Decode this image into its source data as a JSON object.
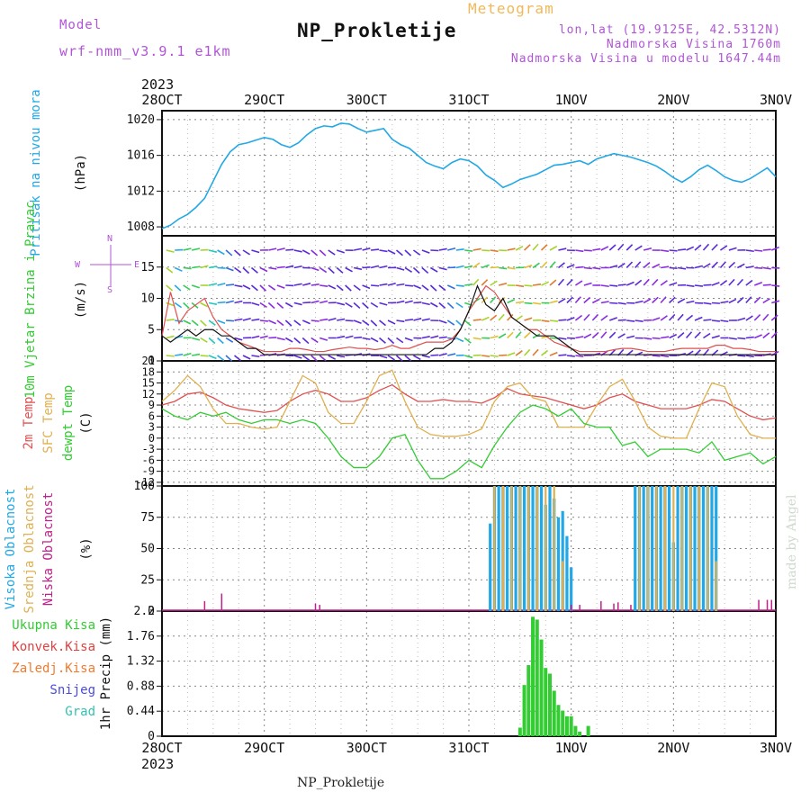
{
  "header": {
    "model_label": "Model",
    "model_name": "wrf-nmm_v3.9.1 e1km",
    "station": "NP_Prokletije",
    "product": "Meteogram",
    "lonlat": "lon,lat (19.9125E, 42.5312N)",
    "elevation": "Nadmorska Visina 1760m",
    "model_elevation": "Nadmorska Visina u modelu 1647.44m"
  },
  "footer": {
    "station": "NP_Prokletije",
    "credit": "made by Angel"
  },
  "colors": {
    "pressure": "#22a8e6",
    "wind_speed": "#e05050",
    "wind_gust": "#111111",
    "temp2m": "#e05050",
    "sfc_temp": "#e0b050",
    "dewpoint": "#33cc33",
    "cloud_high": "#22a8e6",
    "cloud_mid": "#e0b050",
    "cloud_low": "#c0208a",
    "precip_total": "#33cc33"
  },
  "chart_data": [
    {
      "type": "line",
      "panel": "pressure",
      "title": "NP_Prokletije",
      "year_label": "2023",
      "x_ticks": [
        "28OCT",
        "29OCT",
        "30OCT",
        "31OCT",
        "1NOV",
        "2NOV",
        "3NOV"
      ],
      "xlim": [
        0,
        144
      ],
      "ylabel": "Pritisak na nivou mora",
      "unit": "(hPa)",
      "ylim": [
        1007,
        1021
      ],
      "y_ticks": [
        "1008",
        "1012",
        "1016",
        "1020"
      ],
      "series": [
        {
          "x": [
            0,
            2,
            4,
            6,
            8,
            10,
            12,
            14,
            16,
            18,
            20,
            22,
            24,
            26,
            28,
            30,
            32,
            34,
            36,
            38,
            40,
            42,
            44,
            46,
            48,
            50,
            52,
            54,
            56,
            58,
            60,
            62,
            64,
            66,
            68,
            70,
            72,
            74,
            76,
            78,
            80,
            82,
            84,
            86,
            88,
            90,
            92,
            94,
            96,
            98,
            100,
            102,
            104,
            106,
            108,
            110,
            112,
            114,
            116,
            118,
            120,
            122,
            124,
            126,
            128,
            130,
            132,
            134,
            136,
            138,
            140,
            142,
            144
          ],
          "values": [
            1007.8,
            1008.2,
            1008.9,
            1009.4,
            1010.2,
            1011.2,
            1013.1,
            1015.0,
            1016.4,
            1017.2,
            1017.4,
            1017.7,
            1018.0,
            1017.8,
            1017.2,
            1016.9,
            1017.4,
            1018.3,
            1019.0,
            1019.3,
            1019.2,
            1019.6,
            1019.5,
            1019.0,
            1018.6,
            1018.8,
            1019.0,
            1017.8,
            1017.2,
            1016.8,
            1016.0,
            1015.2,
            1014.8,
            1014.5,
            1015.2,
            1015.6,
            1015.4,
            1014.8,
            1013.8,
            1013.2,
            1012.4,
            1012.8,
            1013.3,
            1013.6,
            1013.9,
            1014.4,
            1014.9,
            1015.0,
            1015.2,
            1015.4,
            1015.0,
            1015.6,
            1015.9,
            1016.2,
            1016.0,
            1015.8,
            1015.5,
            1015.2,
            1014.8,
            1014.2,
            1013.5,
            1013.0,
            1013.6,
            1014.4,
            1014.9,
            1014.3,
            1013.6,
            1013.2,
            1013.0,
            1013.4,
            1014.0,
            1014.6,
            1013.6
          ]
        }
      ]
    },
    {
      "type": "line",
      "panel": "wind",
      "ylabel": "10m Vjetar Brzina i Pravac",
      "unit": "(m/s)",
      "compass": [
        "N",
        "W",
        "E",
        "S"
      ],
      "ylim": [
        0,
        20
      ],
      "y_ticks": [
        "0",
        "5",
        "10",
        "15"
      ],
      "xlim": [
        0,
        144
      ],
      "series": [
        {
          "name": "speed",
          "x": [
            0,
            2,
            4,
            6,
            8,
            10,
            12,
            14,
            16,
            18,
            20,
            22,
            24,
            26,
            28,
            30,
            32,
            34,
            36,
            38,
            40,
            42,
            44,
            46,
            48,
            50,
            52,
            54,
            56,
            58,
            60,
            62,
            64,
            66,
            68,
            70,
            72,
            74,
            76,
            78,
            80,
            82,
            84,
            86,
            88,
            90,
            92,
            94,
            96,
            98,
            100,
            102,
            104,
            106,
            108,
            110,
            112,
            114,
            116,
            118,
            120,
            122,
            124,
            126,
            128,
            130,
            132,
            134,
            136,
            138,
            140,
            142,
            144
          ],
          "values": [
            4,
            11,
            6,
            8,
            9,
            10,
            7,
            5,
            4,
            3,
            2.5,
            2,
            1.5,
            1.5,
            1.5,
            2,
            2,
            1.8,
            1.5,
            1.5,
            1.8,
            2,
            2.2,
            2,
            2,
            1.8,
            2,
            2.5,
            2,
            2,
            2.5,
            3,
            3,
            3,
            3.5,
            5,
            8,
            10,
            12,
            11,
            9,
            7,
            6,
            5,
            5,
            4,
            3,
            2.5,
            2,
            1.5,
            1.5,
            1.5,
            1.5,
            1.8,
            2,
            2,
            1.8,
            1.5,
            1.5,
            1.5,
            1.8,
            2,
            2,
            2,
            2,
            2.5,
            2.5,
            2,
            2,
            1.8,
            1.5,
            1.5,
            1.5
          ]
        },
        {
          "name": "gust",
          "x": [
            0,
            2,
            4,
            6,
            8,
            10,
            12,
            14,
            16,
            18,
            20,
            22,
            24,
            26,
            28,
            30,
            32,
            34,
            36,
            38,
            40,
            42,
            44,
            46,
            48,
            50,
            52,
            54,
            56,
            58,
            60,
            62,
            64,
            66,
            68,
            70,
            72,
            74,
            76,
            78,
            80,
            82,
            84,
            86,
            88,
            90,
            92,
            94,
            96,
            98,
            100,
            102,
            104,
            106,
            108,
            110,
            112,
            114,
            116,
            118,
            120,
            122,
            124,
            126,
            128,
            130,
            132,
            134,
            136,
            138,
            140,
            142,
            144
          ],
          "values": [
            4,
            3,
            4,
            5,
            4,
            5,
            5,
            4,
            4,
            3,
            2,
            2,
            1,
            1,
            1,
            1,
            1,
            1,
            1,
            1,
            1,
            1,
            1,
            1,
            1,
            1,
            1,
            1,
            1,
            1,
            1,
            1,
            2,
            2,
            3,
            5,
            8,
            12,
            9,
            8,
            10,
            7,
            6,
            5,
            4,
            4,
            4,
            3,
            2,
            1,
            1,
            1,
            1,
            1,
            1,
            1,
            1,
            1,
            1,
            1,
            1,
            1,
            1,
            1,
            1,
            1,
            1,
            1,
            1,
            1,
            1,
            1,
            1
          ]
        }
      ]
    },
    {
      "type": "line",
      "panel": "temperature",
      "labels": [
        "2m Temp",
        "SFC Temp",
        "dewpt Temp"
      ],
      "unit": "(C)",
      "ylim": [
        -13,
        21
      ],
      "y_ticks": [
        "-12",
        "-9",
        "-6",
        "-3",
        "0",
        "3",
        "6",
        "9",
        "12",
        "15",
        "18",
        "21"
      ],
      "xlim": [
        0,
        144
      ],
      "series": [
        {
          "name": "2m Temp",
          "x": [
            0,
            3,
            6,
            9,
            12,
            15,
            18,
            21,
            24,
            27,
            30,
            33,
            36,
            39,
            42,
            45,
            48,
            51,
            54,
            57,
            60,
            63,
            66,
            69,
            72,
            75,
            78,
            81,
            84,
            87,
            90,
            93,
            96,
            99,
            102,
            105,
            108,
            111,
            114,
            117,
            120,
            123,
            126,
            129,
            132,
            135,
            138,
            141,
            144
          ],
          "values": [
            9,
            10,
            12,
            12.5,
            11,
            9,
            8,
            7.5,
            7,
            7.5,
            10,
            12,
            13,
            12,
            10,
            10,
            11,
            13,
            14.5,
            12,
            10,
            10,
            10.5,
            10,
            10,
            9.5,
            11,
            13.5,
            12,
            11.5,
            11,
            10,
            9,
            8,
            9,
            11,
            12,
            10,
            9,
            8,
            8,
            8,
            9,
            10.5,
            10,
            8,
            6,
            5,
            5.5
          ]
        },
        {
          "name": "SFC Temp",
          "x": [
            0,
            3,
            6,
            9,
            12,
            15,
            18,
            21,
            24,
            27,
            30,
            33,
            36,
            39,
            42,
            45,
            48,
            51,
            54,
            57,
            60,
            63,
            66,
            69,
            72,
            75,
            78,
            81,
            84,
            87,
            90,
            93,
            96,
            99,
            102,
            105,
            108,
            111,
            114,
            117,
            120,
            123,
            126,
            129,
            132,
            135,
            138,
            141,
            144
          ],
          "values": [
            10,
            13,
            17,
            14,
            8,
            4,
            4,
            3,
            2.5,
            3,
            10,
            17,
            15,
            7,
            4,
            4,
            10,
            17,
            18.5,
            10,
            3,
            1,
            0.5,
            0.5,
            1,
            2.5,
            10,
            14,
            15,
            11,
            10,
            3,
            3,
            3,
            9,
            14,
            16,
            10,
            3,
            0.5,
            0,
            0,
            8,
            15,
            14,
            6,
            1,
            0,
            0
          ]
        },
        {
          "name": "dewpt Temp",
          "x": [
            0,
            3,
            6,
            9,
            12,
            15,
            18,
            21,
            24,
            27,
            30,
            33,
            36,
            39,
            42,
            45,
            48,
            51,
            54,
            57,
            60,
            63,
            66,
            69,
            72,
            75,
            78,
            81,
            84,
            87,
            90,
            93,
            96,
            99,
            102,
            105,
            108,
            111,
            114,
            117,
            120,
            123,
            126,
            129,
            132,
            135,
            138,
            141,
            144
          ],
          "values": [
            8,
            6,
            5,
            7,
            6,
            7,
            5,
            4,
            5,
            5,
            4,
            5,
            4,
            0,
            -5,
            -8,
            -8,
            -5,
            0,
            1,
            -6,
            -11,
            -11,
            -9,
            -6,
            -8,
            -2,
            3,
            7,
            9,
            8,
            6,
            8,
            4,
            3,
            3,
            -2,
            -1,
            -5,
            -3,
            -3,
            -3,
            -4,
            -1,
            -6,
            -5,
            -4,
            -7,
            -5
          ]
        }
      ]
    },
    {
      "type": "bar",
      "panel": "clouds",
      "labels": [
        "Visoka Oblacnost",
        "Srednja Oblacnost",
        "Niska Oblacnost"
      ],
      "unit": "(%)",
      "ylim": [
        0,
        100
      ],
      "y_ticks": [
        "0",
        "25",
        "50",
        "75",
        "100"
      ],
      "xlim": [
        0,
        144
      ],
      "series": [
        {
          "name": "Visoka Oblacnost",
          "x": [
            77,
            78,
            79,
            80,
            81,
            82,
            83,
            84,
            85,
            86,
            87,
            88,
            89,
            90,
            91,
            92,
            93,
            94,
            95,
            96,
            111,
            112,
            113,
            114,
            115,
            116,
            117,
            118,
            119,
            120,
            121,
            122,
            123,
            124,
            125,
            126,
            127,
            128,
            129,
            130
          ],
          "values": [
            70,
            100,
            100,
            100,
            100,
            100,
            100,
            100,
            100,
            100,
            100,
            100,
            100,
            85,
            100,
            90,
            75,
            80,
            60,
            35,
            100,
            100,
            100,
            100,
            100,
            100,
            100,
            100,
            100,
            55,
            100,
            100,
            100,
            100,
            100,
            100,
            100,
            100,
            100,
            100
          ]
        },
        {
          "name": "Srednja Oblacnost",
          "x": [
            78,
            80,
            82,
            84,
            86,
            88,
            90,
            92,
            94,
            112,
            114,
            116,
            118,
            120,
            122,
            124,
            126,
            128,
            130
          ],
          "values": [
            100,
            100,
            100,
            100,
            100,
            100,
            100,
            100,
            40,
            100,
            100,
            100,
            100,
            100,
            100,
            100,
            100,
            100,
            40
          ]
        },
        {
          "name": "Niska Oblacnost",
          "x": [
            10,
            14,
            36,
            37,
            96,
            98,
            103,
            106,
            107,
            110,
            140,
            142,
            143
          ],
          "values": [
            8,
            14,
            6,
            5,
            5,
            5,
            8,
            6,
            7,
            5,
            9,
            9,
            9
          ]
        }
      ]
    },
    {
      "type": "bar",
      "panel": "precipitation",
      "labels": [
        "Ukupna Kisa",
        "Konvek.Kisa",
        "Zaledj.Kisa",
        "Snijeg",
        "Grad"
      ],
      "ylabel": "1hr Precip (mm)",
      "ylim": [
        0,
        2.2
      ],
      "y_ticks": [
        "0",
        "0.44",
        "0.88",
        "1.32",
        "1.76",
        "2.2"
      ],
      "xlim": [
        0,
        144
      ],
      "series": [
        {
          "name": "Ukupna Kisa",
          "x": [
            84,
            85,
            86,
            87,
            88,
            89,
            90,
            91,
            92,
            93,
            94,
            95,
            96,
            97,
            98,
            100
          ],
          "values": [
            0.15,
            0.9,
            1.25,
            2.1,
            2.05,
            1.7,
            1.2,
            1.1,
            0.8,
            0.55,
            0.45,
            0.35,
            0.35,
            0.18,
            0.08,
            0.18
          ]
        }
      ]
    }
  ]
}
